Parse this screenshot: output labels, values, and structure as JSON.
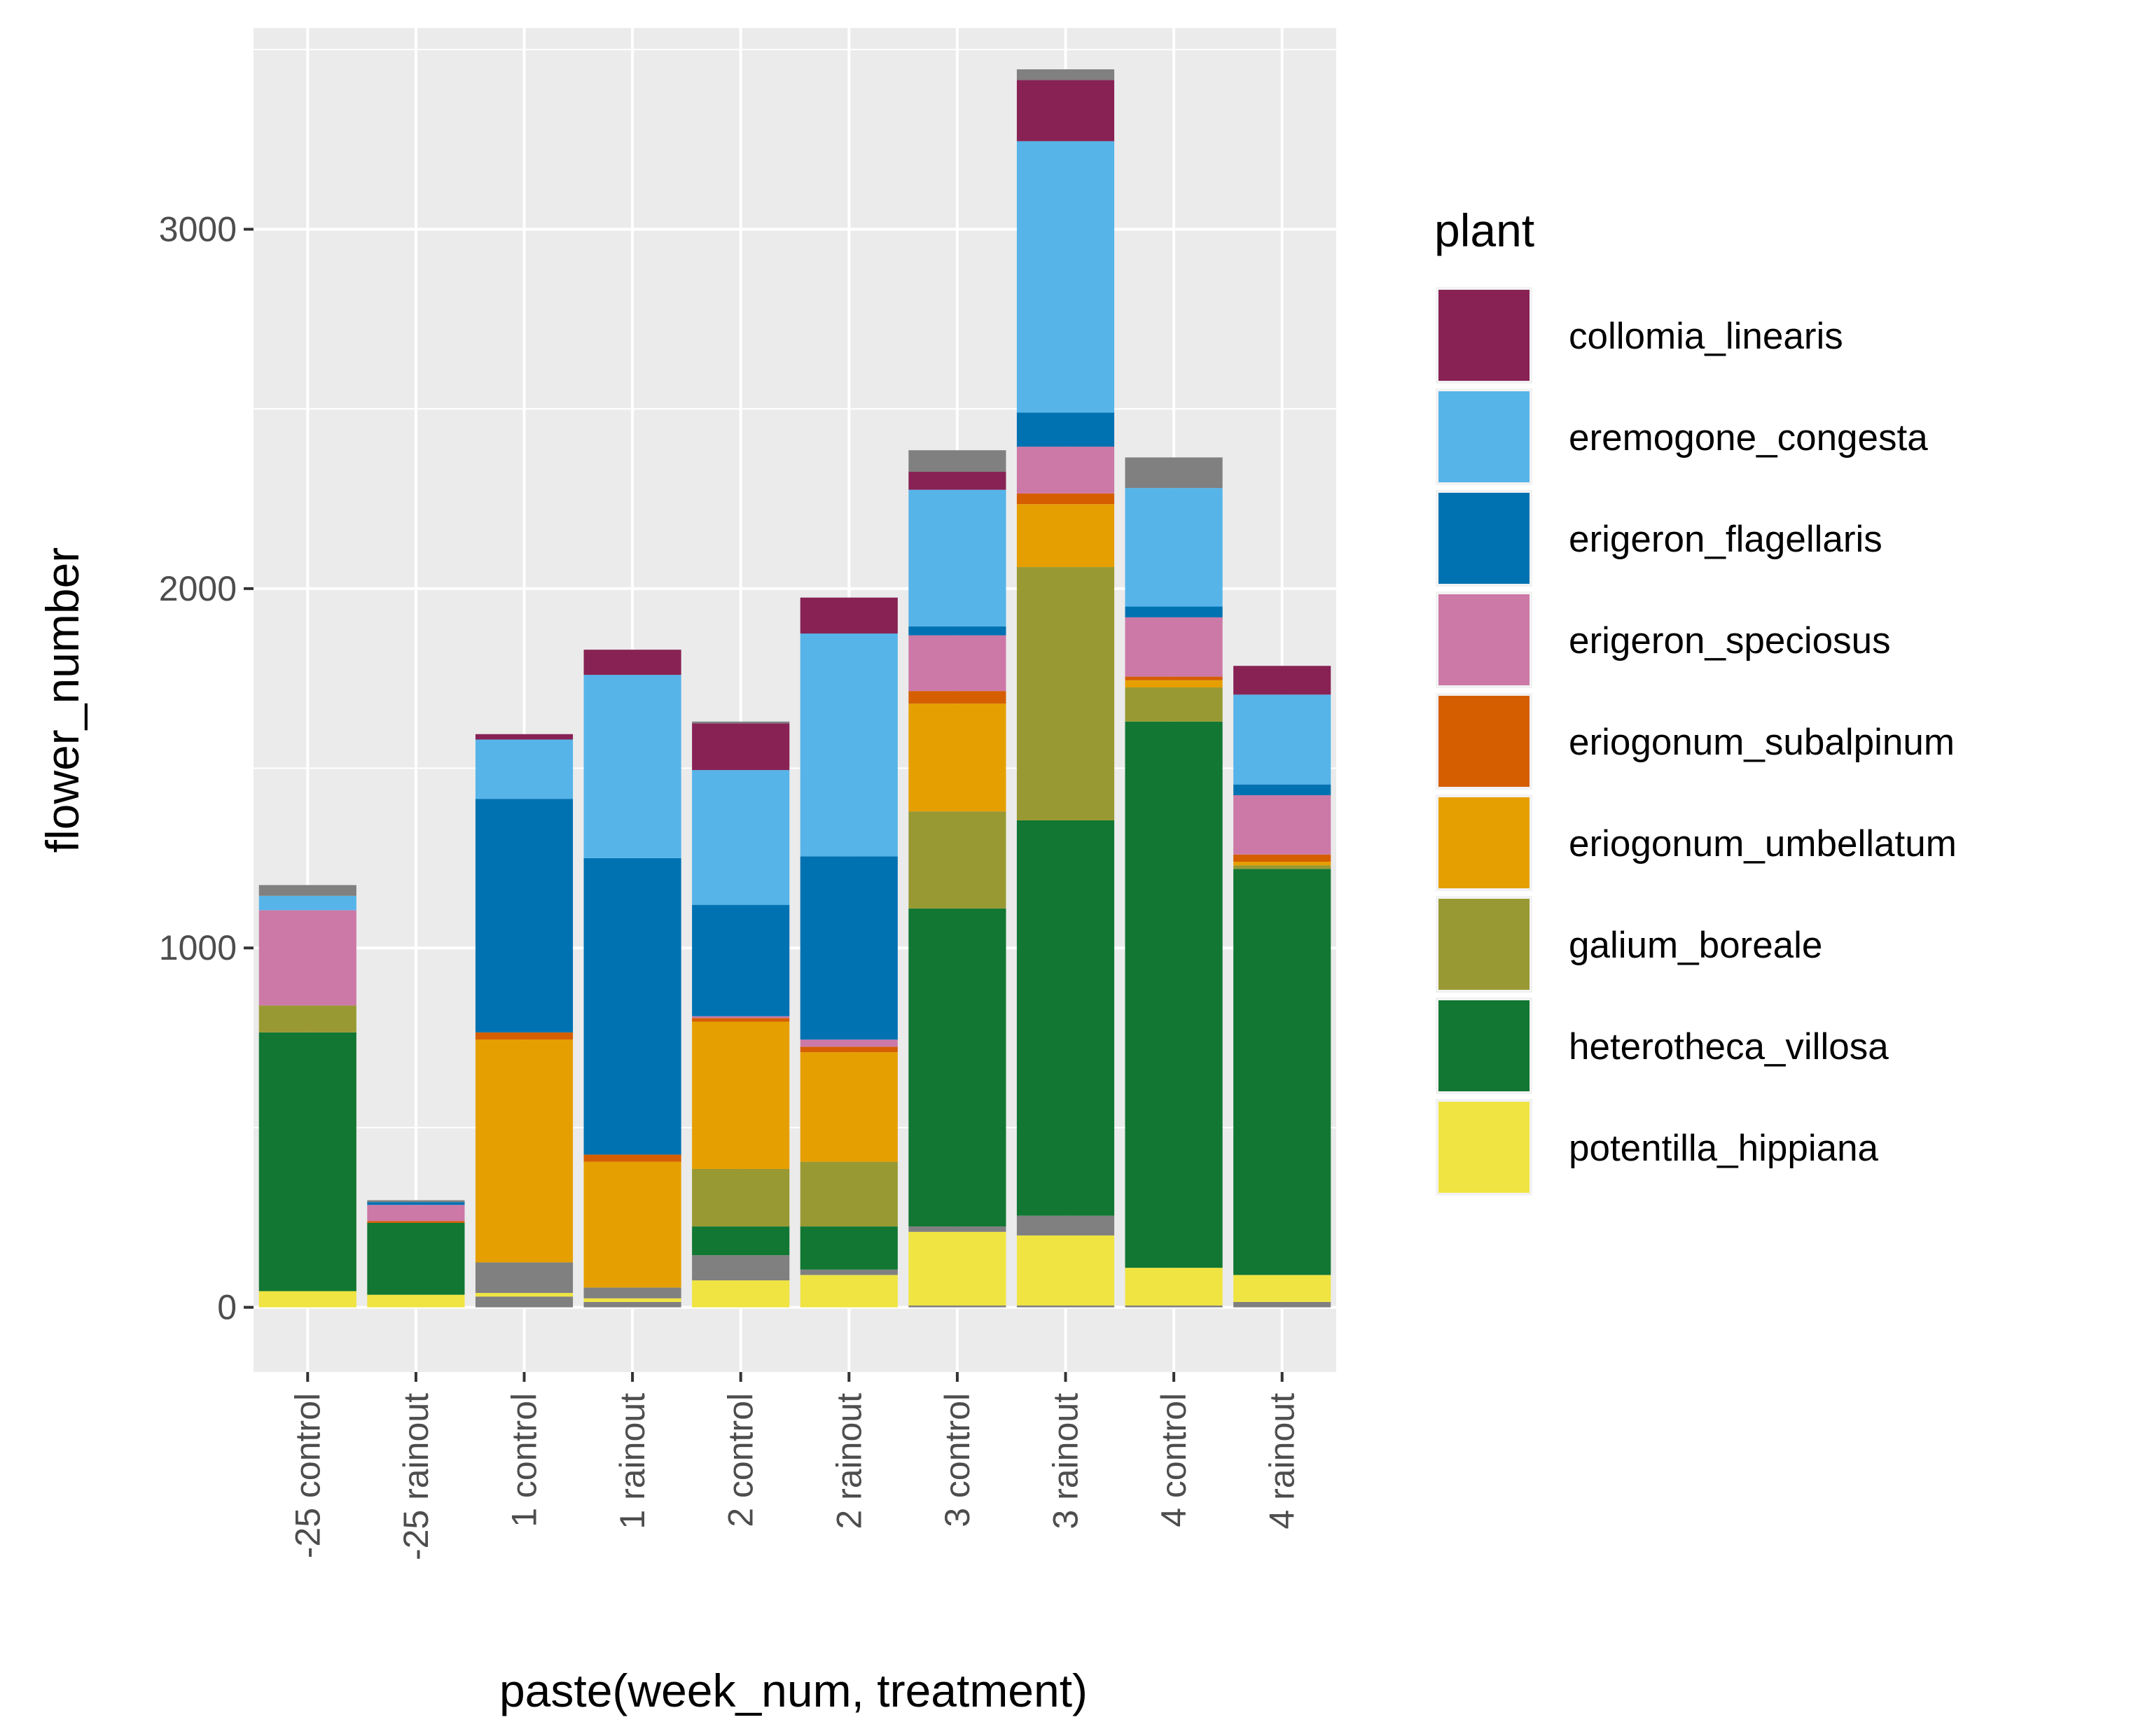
{
  "chart_data": {
    "type": "bar",
    "stacked": true,
    "xlabel": "paste(week_num, treatment)",
    "ylabel": "flower_number",
    "ylim": [
      -180,
      3560
    ],
    "y_ticks": [
      0,
      1000,
      2000,
      3000
    ],
    "grid": true,
    "legend_title": "plant",
    "legend_position": "right",
    "categories": [
      "-25 control",
      "-25 rainout",
      "1 control",
      "1 rainout",
      "2 control",
      "2 rainout",
      "3 control",
      "3 rainout",
      "4 control",
      "4 rainout"
    ],
    "stack_order_bottom_to_top": [
      "other",
      "potentilla_hippiana",
      "other",
      "heterotheca_villosa",
      "galium_boreale",
      "eriogonum_umbellatum",
      "eriogonum_subalpinum",
      "erigeron_speciosus",
      "erigeron_flagellaris",
      "eremogone_congesta",
      "collomia_linearis",
      "other"
    ],
    "series": [
      {
        "name": "collomia_linearis",
        "color": "#882255",
        "values": [
          0,
          0,
          15,
          70,
          130,
          100,
          50,
          170,
          0,
          80
        ]
      },
      {
        "name": "eremogone_congesta",
        "color": "#56B4E9",
        "values": [
          40,
          0,
          165,
          510,
          375,
          620,
          380,
          755,
          330,
          250
        ]
      },
      {
        "name": "erigeron_flagellaris",
        "color": "#0072B2",
        "values": [
          0,
          8,
          650,
          825,
          310,
          510,
          25,
          95,
          30,
          30
        ]
      },
      {
        "name": "erigeron_speciosus",
        "color": "#CC79A7",
        "values": [
          265,
          45,
          0,
          0,
          5,
          20,
          155,
          130,
          165,
          165
        ]
      },
      {
        "name": "eriogonum_subalpinum",
        "color": "#D55E00",
        "values": [
          0,
          5,
          20,
          20,
          10,
          15,
          35,
          30,
          10,
          20
        ]
      },
      {
        "name": "eriogonum_umbellatum",
        "color": "#E69F00",
        "values": [
          0,
          0,
          620,
          350,
          410,
          305,
          300,
          175,
          20,
          10
        ]
      },
      {
        "name": "galium_boreale",
        "color": "#999933",
        "values": [
          75,
          0,
          0,
          0,
          160,
          180,
          270,
          705,
          95,
          10
        ]
      },
      {
        "name": "heterotheca_villosa",
        "color": "#117733",
        "values": [
          720,
          200,
          0,
          0,
          80,
          120,
          885,
          1100,
          1520,
          1130
        ]
      },
      {
        "name": "potentilla_hippiana",
        "color": "#F0E442",
        "values": [
          45,
          35,
          10,
          10,
          75,
          90,
          205,
          195,
          105,
          75
        ]
      }
    ],
    "other_color": "#808080",
    "other_bottom": [
      0,
      0,
      30,
      15,
      0,
      0,
      5,
      5,
      5,
      15
    ],
    "other_middle": [
      0,
      0,
      85,
      30,
      70,
      15,
      15,
      55,
      0,
      0
    ],
    "other_top": [
      30,
      5,
      0,
      0,
      5,
      0,
      60,
      30,
      85,
      0
    ]
  }
}
